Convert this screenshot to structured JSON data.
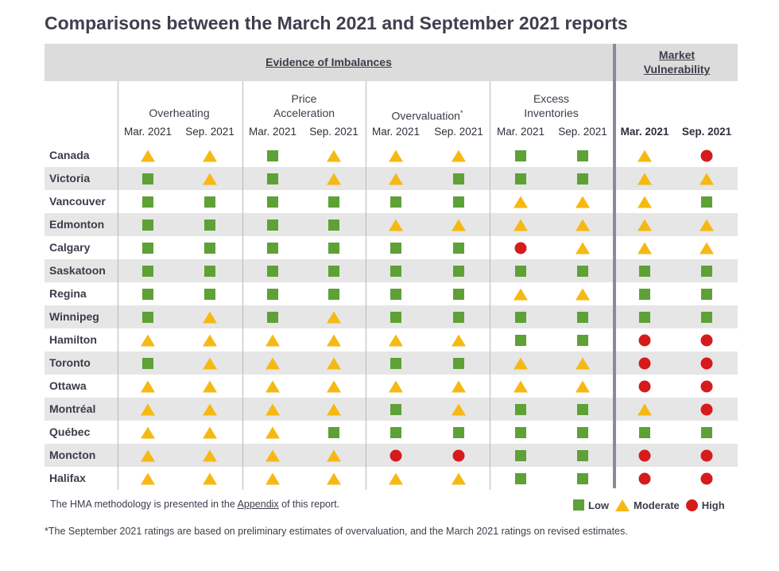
{
  "title": "Comparisons between the March 2021 and September 2021 reports",
  "header": {
    "evidence_label": "Evidence of Imbalances",
    "market_label_line1": "Market",
    "market_label_line2": "Vulnerability"
  },
  "groups": [
    {
      "line1": "",
      "line2": "Overheating"
    },
    {
      "line1": "Price",
      "line2": "Acceleration"
    },
    {
      "line1": "",
      "line2": "Overvaluation",
      "sup": "*"
    },
    {
      "line1": "Excess",
      "line2": "Inventories"
    }
  ],
  "sub_labels": [
    "Mar. 2021",
    "Sep. 2021"
  ],
  "rows": [
    {
      "city": "Canada",
      "ratings": [
        "M",
        "M",
        "L",
        "M",
        "M",
        "M",
        "L",
        "L",
        "M",
        "H"
      ]
    },
    {
      "city": "Victoria",
      "ratings": [
        "L",
        "M",
        "L",
        "M",
        "M",
        "L",
        "L",
        "L",
        "M",
        "M"
      ]
    },
    {
      "city": "Vancouver",
      "ratings": [
        "L",
        "L",
        "L",
        "L",
        "L",
        "L",
        "M",
        "M",
        "M",
        "L"
      ]
    },
    {
      "city": "Edmonton",
      "ratings": [
        "L",
        "L",
        "L",
        "L",
        "M",
        "M",
        "M",
        "M",
        "M",
        "M"
      ]
    },
    {
      "city": "Calgary",
      "ratings": [
        "L",
        "L",
        "L",
        "L",
        "L",
        "L",
        "H",
        "M",
        "M",
        "M"
      ]
    },
    {
      "city": "Saskatoon",
      "ratings": [
        "L",
        "L",
        "L",
        "L",
        "L",
        "L",
        "L",
        "L",
        "L",
        "L"
      ]
    },
    {
      "city": "Regina",
      "ratings": [
        "L",
        "L",
        "L",
        "L",
        "L",
        "L",
        "M",
        "M",
        "L",
        "L"
      ]
    },
    {
      "city": "Winnipeg",
      "ratings": [
        "L",
        "M",
        "L",
        "M",
        "L",
        "L",
        "L",
        "L",
        "L",
        "L"
      ]
    },
    {
      "city": "Hamilton",
      "ratings": [
        "M",
        "M",
        "M",
        "M",
        "M",
        "M",
        "L",
        "L",
        "H",
        "H"
      ]
    },
    {
      "city": "Toronto",
      "ratings": [
        "L",
        "M",
        "M",
        "M",
        "L",
        "L",
        "M",
        "M",
        "H",
        "H"
      ]
    },
    {
      "city": "Ottawa",
      "ratings": [
        "M",
        "M",
        "M",
        "M",
        "M",
        "M",
        "M",
        "M",
        "H",
        "H"
      ]
    },
    {
      "city": "Montréal",
      "ratings": [
        "M",
        "M",
        "M",
        "M",
        "L",
        "M",
        "L",
        "L",
        "M",
        "H"
      ]
    },
    {
      "city": "Québec",
      "ratings": [
        "M",
        "M",
        "M",
        "L",
        "L",
        "L",
        "L",
        "L",
        "L",
        "L"
      ]
    },
    {
      "city": "Moncton",
      "ratings": [
        "M",
        "M",
        "M",
        "M",
        "H",
        "H",
        "L",
        "L",
        "H",
        "H"
      ]
    },
    {
      "city": "Halifax",
      "ratings": [
        "M",
        "M",
        "M",
        "M",
        "M",
        "M",
        "L",
        "L",
        "H",
        "H"
      ]
    }
  ],
  "footer": {
    "methodology_before": "The HMA methodology is presented in the ",
    "methodology_link": "Appendix",
    "methodology_after": " of this report.",
    "footnote": "*The September 2021 ratings are based on preliminary estimates of overvaluation, and the March 2021 ratings on revised estimates."
  },
  "legend": [
    {
      "key": "L",
      "label": "Low"
    },
    {
      "key": "M",
      "label": "Moderate"
    },
    {
      "key": "H",
      "label": "High"
    }
  ],
  "colors": {
    "low": "#5ea136",
    "moderate": "#f6b913",
    "high": "#d51b1b"
  }
}
